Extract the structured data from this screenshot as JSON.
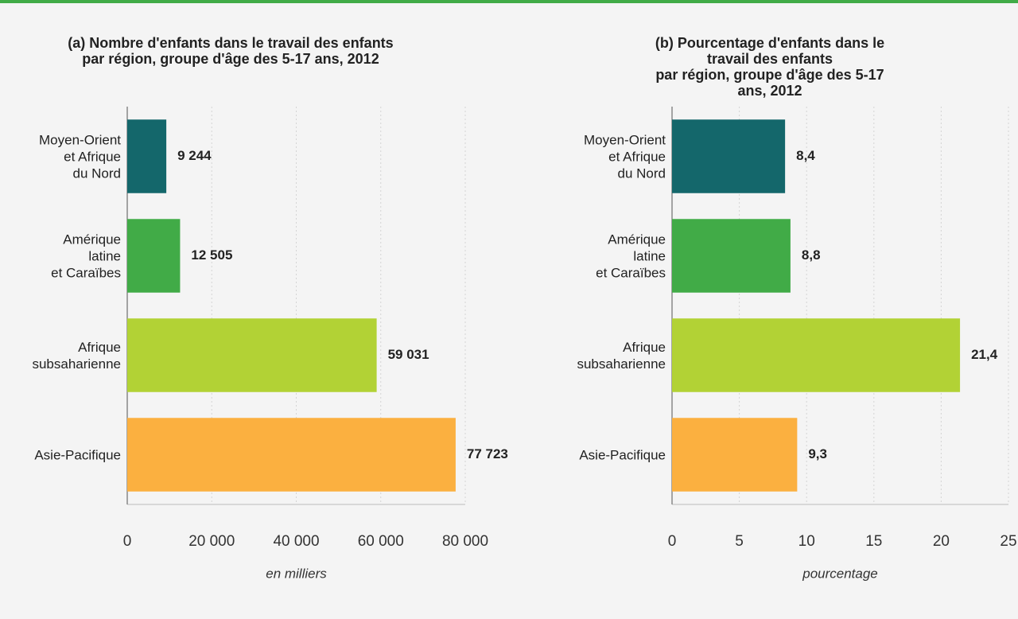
{
  "chart_data": [
    {
      "type": "barh",
      "title": "(a) Nombre d'enfants dans le travail des enfants\npar région, groupe d'âge des 5-17 ans, 2012",
      "categories": [
        "Moyen-Orient\net Afrique\ndu Nord",
        "Amérique\nlatine\net Caraïbes",
        "Afrique\nsubsaharienne",
        "Asie-Pacifique"
      ],
      "values": [
        9244,
        12505,
        59031,
        77723
      ],
      "value_labels": [
        "9 244",
        "12 505",
        "59 031",
        "77 723"
      ],
      "colors": [
        "#14676b",
        "#41ab47",
        "#b2d235",
        "#fbb040"
      ],
      "xlim": [
        0,
        80000
      ],
      "xticks": [
        0,
        {
          "value": 20000,
          "label": "20 000"
        },
        {
          "value": 40000,
          "label": "40 000"
        },
        {
          "value": 60000,
          "label": "60 000"
        },
        {
          "value": 80000,
          "label": "80 000"
        }
      ],
      "xlabel": "en milliers",
      "grid": true
    },
    {
      "type": "barh",
      "title": "(b) Pourcentage d'enfants dans le travail des enfants\npar région, groupe d'âge des 5-17 ans, 2012",
      "categories": [
        "Moyen-Orient\net Afrique\ndu Nord",
        "Amérique\nlatine\net Caraïbes",
        "Afrique\nsubsaharienne",
        "Asie-Pacifique"
      ],
      "values": [
        8.4,
        8.8,
        21.4,
        9.3
      ],
      "value_labels": [
        "8,4",
        "8,8",
        "21,4",
        "9,3"
      ],
      "colors": [
        "#14676b",
        "#41ab47",
        "#b2d235",
        "#fbb040"
      ],
      "xlim": [
        0,
        25
      ],
      "xticks": [
        0,
        5,
        10,
        15,
        20,
        25
      ],
      "xlabel": "pourcentage",
      "grid": true
    }
  ]
}
